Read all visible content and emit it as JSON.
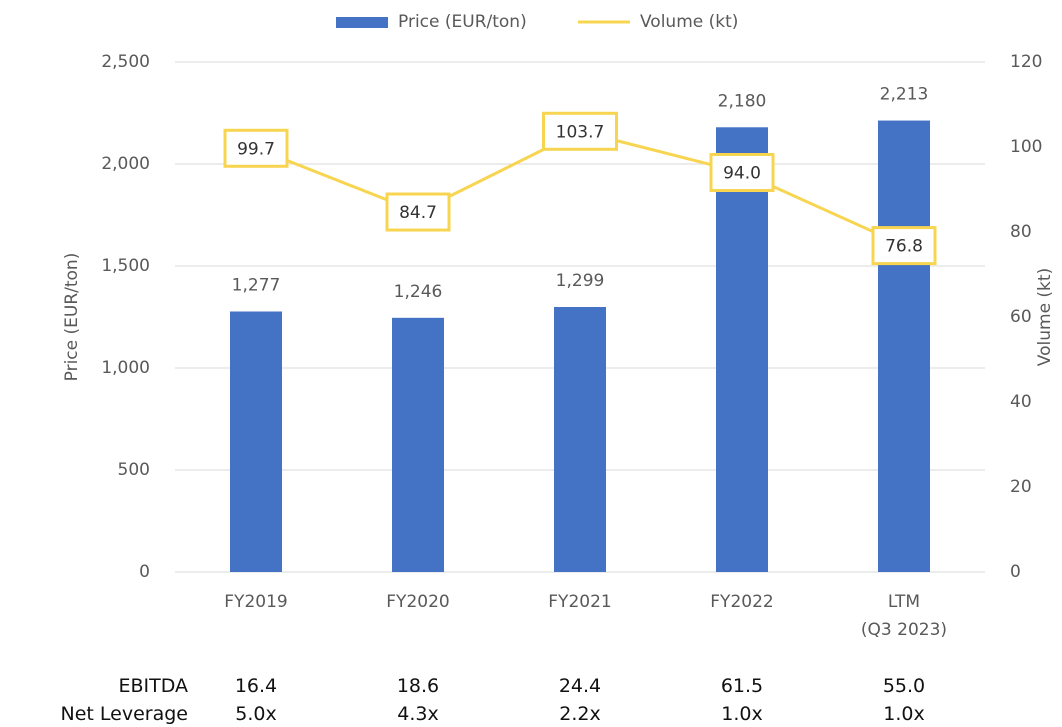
{
  "chart_data": {
    "type": "bar-line",
    "categories": [
      "FY2019",
      "FY2020",
      "FY2021",
      "FY2022",
      "LTM\n(Q3 2023)"
    ],
    "series": [
      {
        "name": "Price (EUR/ton)",
        "type": "bar",
        "color": "#4472c4",
        "axis": "y",
        "values": [
          1277,
          1246,
          1299,
          2180,
          2213
        ],
        "value_labels": [
          "1,277",
          "1,246",
          "1,299",
          "2,180",
          "2,213"
        ]
      },
      {
        "name": "Volume (kt)",
        "type": "line",
        "color": "#f7d550",
        "axis": "y2",
        "values": [
          99.7,
          84.7,
          103.7,
          94.0,
          76.8
        ],
        "value_labels": [
          "99.7",
          "84.7",
          "103.7",
          "94.0",
          "76.8"
        ]
      }
    ],
    "ylabel": "Price (EUR/ton)",
    "y2label": "Volume (kt)",
    "ylim": [
      0,
      2500
    ],
    "yticks": [
      0,
      500,
      {
        "value": 1000,
        "label": "1,000"
      },
      {
        "value": 1500,
        "label": "1,500"
      },
      {
        "value": 2000,
        "label": "2,000"
      },
      {
        "value": 2500,
        "label": "2,500"
      }
    ],
    "y2lim": [
      0,
      120
    ],
    "y2ticks": [
      0,
      20,
      40,
      60,
      80,
      100,
      120
    ],
    "grid": true,
    "legend": "top"
  },
  "table": {
    "rows": [
      {
        "label": "EBITDA",
        "values": [
          "16.4",
          "18.6",
          "24.4",
          "61.5",
          "55.0"
        ]
      },
      {
        "label": "Net Leverage",
        "values": [
          "5.0x",
          "4.3x",
          "2.2x",
          "1.0x",
          "1.0x"
        ]
      }
    ]
  }
}
